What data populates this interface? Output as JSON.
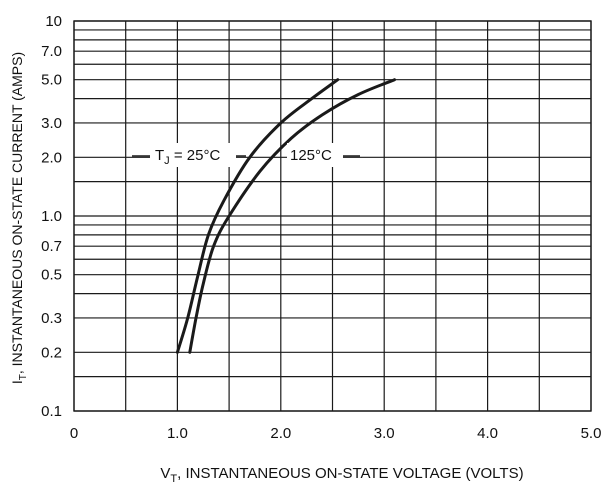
{
  "chart_data": {
    "type": "line",
    "xlabel": {
      "main": "V",
      "sub": "T",
      "rest": ", INSTANTANEOUS ON-STATE VOLTAGE (VOLTS)"
    },
    "ylabel": {
      "main": "I",
      "sub": "T",
      "rest": ", INSTANTANEOUS ON-STATE CURRENT (AMPS)"
    },
    "xlim": [
      0,
      5.0
    ],
    "ylim": [
      0.1,
      10
    ],
    "yscale": "log",
    "grid": true,
    "x_ticks": [
      0,
      0.5,
      1.0,
      1.5,
      2.0,
      2.5,
      3.0,
      3.5,
      4.0,
      4.5,
      5.0
    ],
    "x_tick_labels": [
      {
        "x": 0,
        "label": "0"
      },
      {
        "x": 1.0,
        "label": "1.0"
      },
      {
        "x": 2.0,
        "label": "2.0"
      },
      {
        "x": 3.0,
        "label": "3.0"
      },
      {
        "x": 4.0,
        "label": "4.0"
      },
      {
        "x": 5.0,
        "label": "5.0"
      }
    ],
    "y_gridlines": [
      0.1,
      0.15,
      0.2,
      0.3,
      0.4,
      0.5,
      0.6,
      0.7,
      0.8,
      0.9,
      1.0,
      1.5,
      2.0,
      3.0,
      4.0,
      5.0,
      6.0,
      7.0,
      8.0,
      9.0,
      10
    ],
    "y_tick_labels": [
      {
        "y": 10,
        "label": "10"
      },
      {
        "y": 7.0,
        "label": "7.0"
      },
      {
        "y": 5.0,
        "label": "5.0"
      },
      {
        "y": 3.0,
        "label": "3.0"
      },
      {
        "y": 2.0,
        "label": "2.0"
      },
      {
        "y": 1.0,
        "label": "1.0"
      },
      {
        "y": 0.7,
        "label": "0.7"
      },
      {
        "y": 0.5,
        "label": "0.5"
      },
      {
        "y": 0.3,
        "label": "0.3"
      },
      {
        "y": 0.2,
        "label": "0.2"
      },
      {
        "y": 0.1,
        "label": "0.1"
      }
    ],
    "series": [
      {
        "points": [
          [
            1.0,
            0.2
          ],
          [
            1.1,
            0.3
          ],
          [
            1.2,
            0.5
          ],
          [
            1.3,
            0.8
          ],
          [
            1.45,
            1.2
          ],
          [
            1.7,
            2.0
          ],
          [
            2.0,
            3.0
          ],
          [
            2.3,
            4.0
          ],
          [
            2.55,
            5.0
          ]
        ]
      },
      {
        "points": [
          [
            1.12,
            0.2
          ],
          [
            1.18,
            0.3
          ],
          [
            1.25,
            0.45
          ],
          [
            1.35,
            0.7
          ],
          [
            1.5,
            1.0
          ],
          [
            1.8,
            1.7
          ],
          [
            2.1,
            2.5
          ],
          [
            2.4,
            3.3
          ],
          [
            2.75,
            4.2
          ],
          [
            3.1,
            5.0
          ]
        ]
      }
    ],
    "annotations": [
      {
        "main": "T",
        "sub": "J",
        "rest": " = 25°C"
      },
      {
        "text": "125°C"
      }
    ],
    "colors": {
      "line": "#1a1a1a",
      "grid": "#1a1a1a",
      "background": "#ffffff"
    }
  }
}
